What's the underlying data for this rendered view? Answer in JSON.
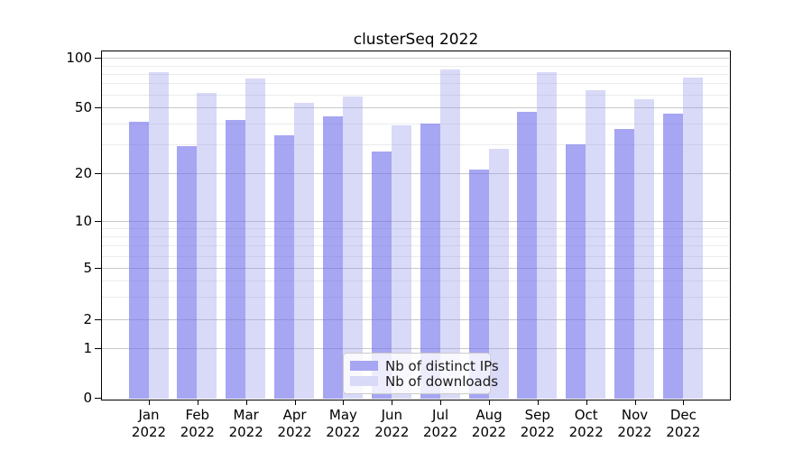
{
  "title": "clusterSeq 2022",
  "legend": {
    "entries": [
      {
        "label": "Nb of distinct IPs",
        "color": "#a6a6f2"
      },
      {
        "label": "Nb of downloads",
        "color": "#d9d9f8"
      }
    ]
  },
  "chart_data": {
    "type": "bar",
    "title": "clusterSeq 2022",
    "categories": [
      "Jan",
      "Feb",
      "Mar",
      "Apr",
      "May",
      "Jun",
      "Jul",
      "Aug",
      "Sep",
      "Oct",
      "Nov",
      "Dec"
    ],
    "category_year": "2022",
    "series": [
      {
        "name": "Nb of distinct IPs",
        "color_fill": "rgba(110,110,235,0.61)",
        "color_solid": "#a6a6f2",
        "values": [
          41,
          29,
          42,
          34,
          44,
          27,
          40,
          21,
          47,
          30,
          37,
          46
        ]
      },
      {
        "name": "Nb of downloads",
        "color_fill": "rgba(150,150,235,0.36)",
        "color_solid": "#d9d9f8",
        "values": [
          82,
          61,
          75,
          53,
          58,
          39,
          85,
          28,
          82,
          64,
          56,
          76
        ]
      }
    ],
    "xlabel": "",
    "ylabel": "",
    "y_axis": {
      "scale": "symlog",
      "ticks": [
        100,
        50,
        20,
        10,
        5,
        2,
        1,
        0
      ],
      "tick_labels": [
        "100",
        "50",
        "20",
        "10",
        "5",
        "2",
        "1",
        "0"
      ],
      "minor_gridline_values": [
        90,
        80,
        70,
        60,
        40,
        30,
        9,
        8,
        7,
        6,
        4,
        3
      ],
      "ylim": [
        0,
        110
      ]
    },
    "grid": true,
    "legend_position": "lower center"
  }
}
